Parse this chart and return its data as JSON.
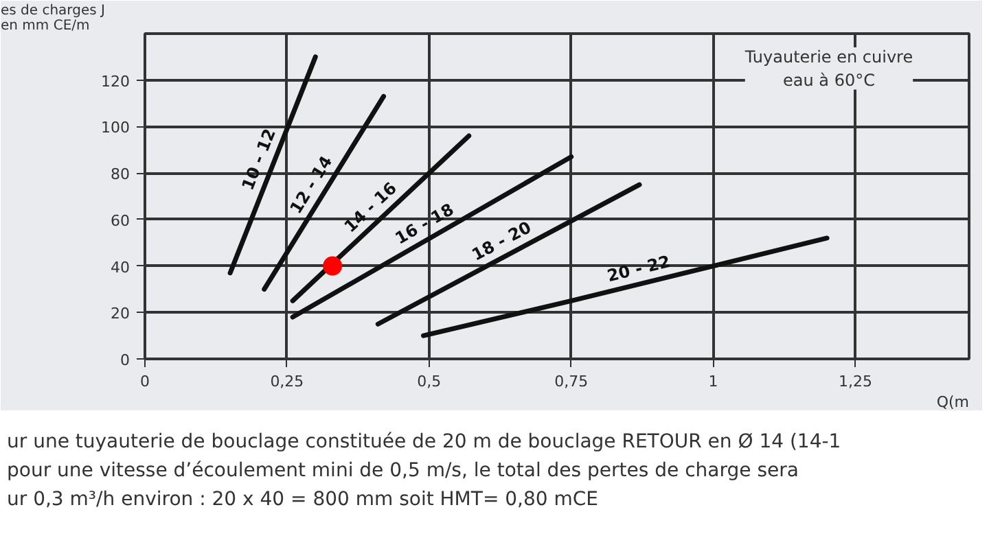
{
  "chart_data": {
    "type": "line",
    "title": "Tuyauterie en cuivre\neau à 60°C",
    "ylabel": "es de charges J\nen mm CE/m",
    "xlabel": "Q(m",
    "xlim": [
      0,
      1.45
    ],
    "ylim": [
      0,
      140
    ],
    "xticks": [
      0,
      {
        "value": 0.25,
        "label": "0,25"
      },
      {
        "value": 0.5,
        "label": "0,5"
      },
      {
        "value": 0.75,
        "label": "0,75"
      },
      1,
      {
        "value": 1.25,
        "label": "1,25"
      }
    ],
    "yticks": [
      0,
      20,
      40,
      60,
      80,
      100,
      120
    ],
    "grid": true,
    "marker": "none",
    "line_style": "solid",
    "series": [
      {
        "name": "10 - 12",
        "color": "#111111",
        "x": [
          0.15,
          0.3
        ],
        "values": [
          37,
          130
        ]
      },
      {
        "name": "12 - 14",
        "color": "#111111",
        "x": [
          0.21,
          0.42
        ],
        "values": [
          30,
          113
        ]
      },
      {
        "name": "14 - 16",
        "color": "#111111",
        "x": [
          0.26,
          0.57
        ],
        "values": [
          25,
          96
        ]
      },
      {
        "name": "16 - 18",
        "color": "#111111",
        "x": [
          0.26,
          0.75
        ],
        "values": [
          18,
          87
        ]
      },
      {
        "name": "18 - 20",
        "color": "#111111",
        "x": [
          0.41,
          0.87
        ],
        "values": [
          15,
          75
        ]
      },
      {
        "name": "20 - 22",
        "color": "#111111",
        "x": [
          0.49,
          0.75,
          1,
          1.2
        ],
        "values": [
          10,
          25,
          40,
          52
        ]
      },
      {
        "type": "scatter",
        "marker": "circle",
        "color": "#ff0000",
        "x": [
          0.33
        ],
        "values": [
          40
        ]
      }
    ],
    "annotations": [
      "ur une tuyauterie de bouclage constituée de 20 m de bouclage RETOUR en Ø 14 (14-1",
      "pour une vitesse d’écoulement mini de 0,5 m/s, le total des pertes de charge sera",
      "ur 0,3 m³/h environ : 20 x 40 = 800 mm soit HMT= 0,80 mCE"
    ]
  }
}
